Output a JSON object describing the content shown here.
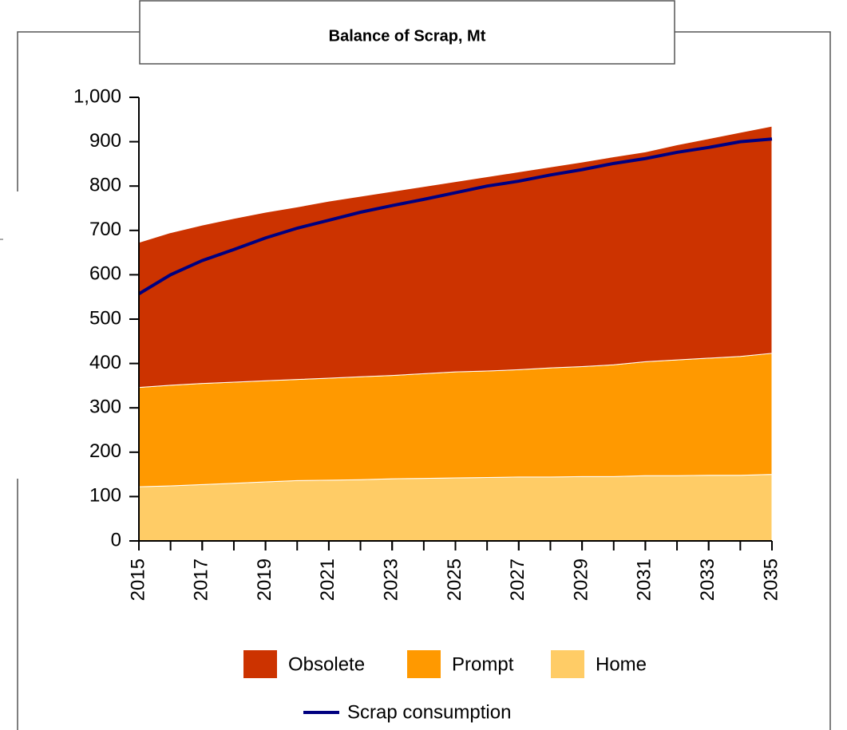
{
  "chart_data": {
    "type": "stacked_area_line",
    "title": "Balance of Scrap, Mt",
    "x": [
      2015,
      2016,
      2017,
      2018,
      2019,
      2020,
      2021,
      2022,
      2023,
      2024,
      2025,
      2026,
      2027,
      2028,
      2029,
      2030,
      2031,
      2032,
      2033,
      2034,
      2035
    ],
    "xlim": [
      2015,
      2035
    ],
    "xticks": [
      2015,
      2017,
      2019,
      2021,
      2023,
      2025,
      2027,
      2029,
      2031,
      2033,
      2035
    ],
    "ylim": [
      0,
      1000
    ],
    "yticks": [
      0,
      100,
      200,
      300,
      400,
      500,
      600,
      700,
      800,
      900,
      {
        "value": 1000,
        "label": "1,000"
      }
    ],
    "series": [
      {
        "name": "Obsolete",
        "color": "#cc3300",
        "kind": "area",
        "values": [
          327,
          344,
          357,
          369,
          380,
          389,
          399,
          407,
          415,
          422,
          429,
          438,
          446,
          453,
          461,
          469,
          473,
          485,
          495,
          505,
          512
        ]
      },
      {
        "name": "Prompt",
        "color": "#ff9900",
        "kind": "area",
        "values": [
          224,
          227,
          228,
          228,
          228,
          228,
          230,
          232,
          233,
          236,
          239,
          240,
          242,
          246,
          248,
          252,
          257,
          261,
          264,
          268,
          273
        ]
      },
      {
        "name": "Home",
        "color": "#ffcc66",
        "kind": "area",
        "values": [
          122,
          124,
          127,
          130,
          133,
          136,
          137,
          138,
          140,
          141,
          142,
          143,
          144,
          144,
          145,
          145,
          147,
          147,
          148,
          148,
          150
        ]
      },
      {
        "name": "Scrap consumption",
        "color": "#000080",
        "kind": "line",
        "values": [
          557,
          600,
          632,
          657,
          683,
          705,
          723,
          741,
          756,
          770,
          785,
          800,
          811,
          825,
          837,
          851,
          862,
          876,
          887,
          900,
          906
        ]
      }
    ]
  }
}
